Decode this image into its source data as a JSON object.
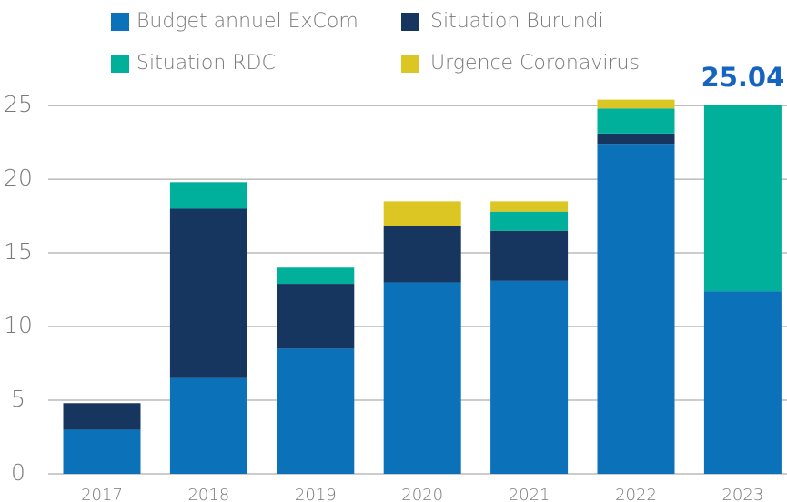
{
  "chart_data": {
    "type": "stacked_bar",
    "categories": [
      "2017",
      "2018",
      "2019",
      "2020",
      "2021",
      "2022",
      "2023"
    ],
    "series": [
      {
        "name": "Budget annuel ExCom",
        "color": "#0b72b9",
        "values": [
          3.0,
          6.5,
          8.5,
          13.0,
          13.1,
          22.4,
          12.4
        ]
      },
      {
        "name": "Situation Burundi",
        "color": "#16355f",
        "values": [
          1.8,
          11.5,
          4.4,
          3.8,
          3.4,
          0.7,
          null
        ]
      },
      {
        "name": "Situation RDC",
        "color": "#00b09b",
        "values": [
          null,
          1.8,
          1.1,
          null,
          1.3,
          1.7,
          12.64
        ]
      },
      {
        "name": "Urgence Coronavirus",
        "color": "#dcc623",
        "values": [
          null,
          null,
          null,
          1.7,
          0.7,
          0.6,
          null
        ]
      }
    ],
    "annotation": "25.04",
    "ylim": [
      0,
      25.5
    ],
    "yticks": [
      0,
      5,
      10,
      15,
      20,
      25
    ],
    "grid": true
  }
}
